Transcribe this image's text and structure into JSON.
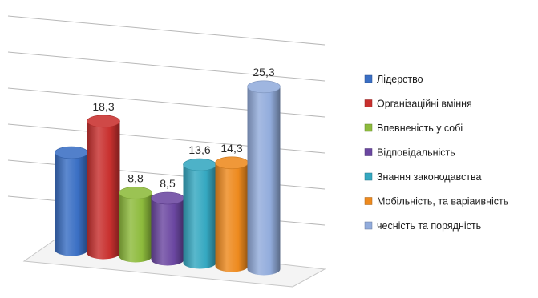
{
  "chart_data": {
    "type": "bar",
    "style": "3d-cylinder",
    "grid": true,
    "legend_position": "right",
    "categories": [
      "Лідерство",
      "Організаційні вміння",
      "Впевненість у собі",
      "Відповідальність",
      "Знання законодавства",
      "Мобільність, та варіаивність",
      "чесність та порядність"
    ],
    "values": [
      13.5,
      18.3,
      8.8,
      8.5,
      13.6,
      14.3,
      25.3
    ],
    "data_labels": [
      "",
      "18,3",
      "8,8",
      "8,5",
      "13,6",
      "14,3",
      "25,3"
    ],
    "colors": [
      "#3a6fc4",
      "#c8302e",
      "#8dbb3c",
      "#6b47a1",
      "#35a8c1",
      "#ee8a1e",
      "#92acdc"
    ],
    "ylim": [
      0,
      30
    ]
  }
}
